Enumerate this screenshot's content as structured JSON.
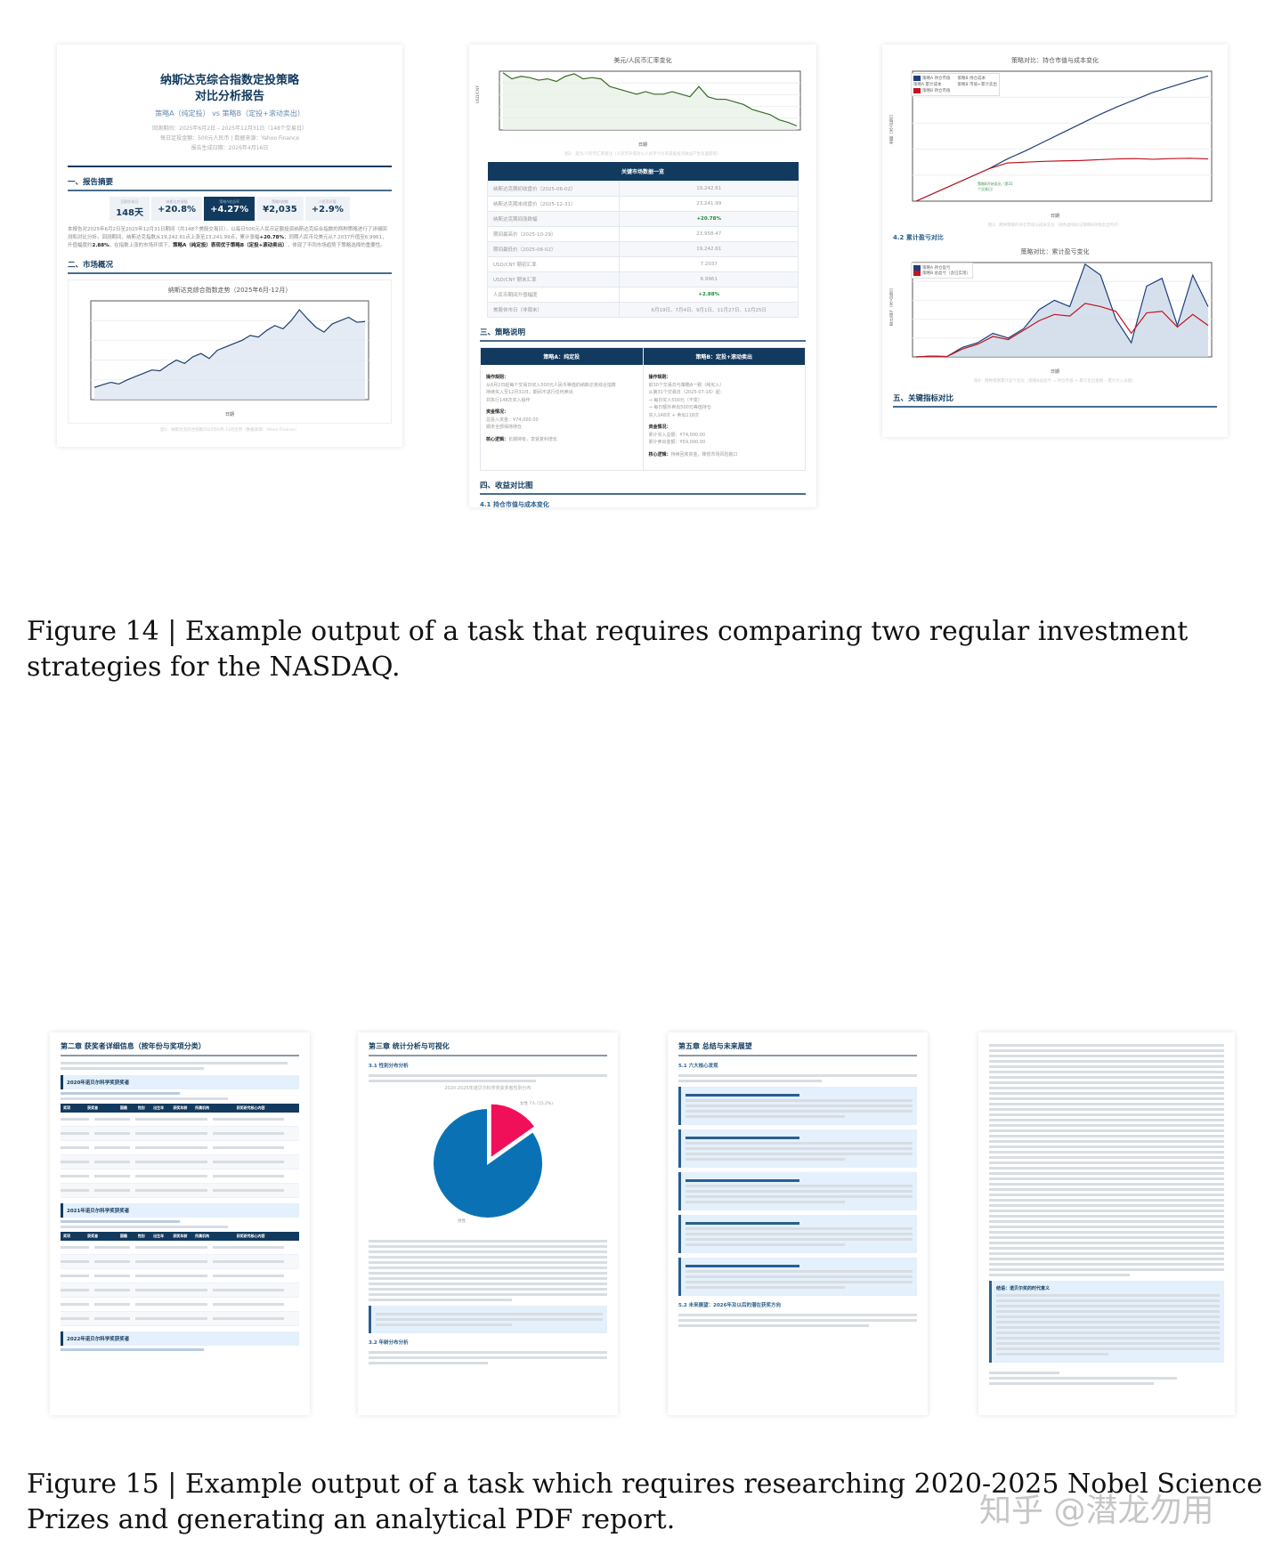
{
  "fig14": {
    "report_title_1": "纳斯达克综合指数定投策略",
    "report_title_2": "对比分析报告",
    "report_subtitle": "策略A（纯定投） vs 策略B（定投+滚动卖出）",
    "meta": [
      "回测期间：2025年6月2日 – 2025年12月31日（148个交易日）",
      "每日定投金额：500元人民币 | 数据来源：Yahoo Finance",
      "报告生成日期：2026年4月16日"
    ],
    "sec1": "一、报告摘要",
    "kpis": [
      {
        "label": "回测交易日",
        "value": "148天"
      },
      {
        "label": "纳斯达克涨幅",
        "value": "+20.8%"
      },
      {
        "label": "策略A收益率",
        "value": "+4.27%"
      },
      {
        "label": "策略A超额",
        "value": "¥2,035"
      },
      {
        "label": "人民币升值",
        "value": "+2.9%"
      }
    ],
    "summary_a": "本报告对2025年6月2日至2025年12月31日期间（共148个美股交易日），以每日500元人民币定额投资纳斯达克综合指数的两种策略进行了详细回测和对比分析。回测期间，纳斯达克指数从19,242.61点上涨至23,241.99点，累计涨幅",
    "summary_b": "+20.78%",
    "summary_c": "；同期人民币兑美元从7.2037升值至6.9961，升值幅度约",
    "summary_d": "2.88%",
    "summary_e": "。在指数上涨的市场环境下，",
    "summary_f": "策略A（纯定投）表现优于策略B（定投+滚动卖出）",
    "summary_g": "，体现了不同市场趋势下策略选择的重要性。",
    "sec2": "二、市场概况",
    "nasdaq_chart_title": "纳斯达克综合指数走势（2025年6月-12月）",
    "nasdaq_caption": "图1：纳斯达克综合指数2025年6月-12月走势（数据来源：Yahoo Finance）",
    "fx_chart_title": "美元/人民币汇率变化",
    "fx_caption": "图2：美元/人民币汇率变化（人民币升值对以人民币计价的美股投资收益产生负面影响）",
    "xlabel": "日期",
    "table_title": "关键市场数据一览",
    "table_rows": [
      [
        "纳斯达克期初收盘价（2025-06-02）",
        "19,242.61"
      ],
      [
        "纳斯达克期末收盘价（2025-12-31）",
        "23,241.99"
      ],
      [
        "纳斯达克期间涨跌幅",
        "+20.78%"
      ],
      [
        "期间最高价（2025-10-29）",
        "23,958.47"
      ],
      [
        "期间最低价（2025-06-02）",
        "19,242.61"
      ],
      [
        "USD/CNY 期初汇率",
        "7.2037"
      ],
      [
        "USD/CNY 期末汇率",
        "6.9961"
      ],
      [
        "人民币期间升值幅度",
        "+2.88%"
      ],
      [
        "美股休市日（非周末）",
        "6月19日、7月4日、9月1日、11月27日、12月25日"
      ]
    ],
    "sec3": "三、策略说明",
    "strategyA": {
      "title": "策略A：纯定投",
      "rules_h": "操作规则：",
      "rules": [
        "从6月2日起每个交易日买入500元人民币等值的纳斯达克综合指数",
        "持续买入至12月31日，期间不进行任何卖出",
        "共执行148次买入操作"
      ],
      "funds_h": "资金情况：",
      "funds": [
        "总投入资金：¥74,000.00",
        "期末全部保持持仓"
      ],
      "logic_h": "核心逻辑：",
      "logic": "长期持有，享受复利增长"
    },
    "strategyB": {
      "title": "策略B：定投+滚动卖出",
      "rules_h": "操作规则：",
      "rules": [
        "前30个交易日与策略A一致（纯买入）",
        "从第31个交易日（2025-07-16）起：",
        "→ 每日买入500元（不变）",
        "→ 每日额外卖出500元等值持仓",
        "买入148次 + 卖出118次"
      ],
      "funds_h": "资金情况：",
      "funds": [
        "累计买入总额：¥74,000.00",
        "累计卖出金额：¥59,000.00"
      ],
      "logic_h": "核心逻辑：",
      "logic": "持续回收资金，降低市场风险敞口"
    },
    "sec4": "四、收益对比图",
    "sub41": "4.1 持仓市值与成本变化",
    "mv_chart_title": "策略对比：持仓市值与成本变化",
    "mv_legend": [
      "策略A 持仓市值",
      "策略A 累计成本",
      "策略B 持仓市值",
      "策略B 持仓成本",
      "策略B 市值+累计卖出"
    ],
    "mv_annotation": "策略B开始卖出（第31个交易日）",
    "mv_caption": "图3：两种策略的持仓市值与成本变化（绿色虚线标记策略B开始卖出时点）",
    "sub42": "4.2 累计盈亏对比",
    "pnl_chart_title": "策略对比：累计盈亏变化",
    "pnl_legend": [
      "策略A 持仓盈亏",
      "策略B 总盈亏（含已实现）"
    ],
    "pnl_caption": "图4：两种策略累计盈亏变化（策略B总盈亏 = 持仓市值 + 累计卖出金额 – 累计买入总额）",
    "sec5": "五、关键指标对比"
  },
  "fig14_caption": "Figure 14 | Example output of a task that requires comparing two regular investment strategies for the NASDAQ.",
  "fig15": {
    "p1": {
      "chapter": "第二章 获奖者详细信息（按年份与奖项分类）",
      "y2020": "2020年诺贝尔科学奖获奖者",
      "y2021": "2021年诺贝尔科学奖获奖者",
      "y2022": "2022年诺贝尔科学奖获奖者",
      "cols": [
        "奖项",
        "获奖者",
        "国籍",
        "性别",
        "出生年",
        "获奖年龄",
        "所属机构",
        "获奖研究核心内容"
      ]
    },
    "p2": {
      "chapter": "第三章 统计分析与可视化",
      "s31": "3.1 性别分布分析",
      "pie_title": "2020-2025年诺贝尔科学奖获奖者性别分布",
      "pie_female": "女性 7人 (15.2%)",
      "pie_male": "男性",
      "s32": "3.2 年龄分布分析"
    },
    "p3": {
      "chapter": "第五章 总结与未来展望",
      "s51": "5.1 六大核心发现",
      "s52": "5.2 未来展望：2026年及以后的潜在获奖方向"
    },
    "p4": {
      "item": "结语：诺贝尔奖的时代意义"
    }
  },
  "fig15_caption": "Figure 15 | Example output of a task which requires researching 2020-2025 Nobel Science Prizes and generating an analytical PDF report.",
  "watermark": "知乎 @潜龙勿用",
  "chart_data": [
    {
      "type": "line",
      "title": "纳斯达克综合指数走势（2025年6月-12月）",
      "xlabel": "日期",
      "ylim": [
        18500,
        24500
      ],
      "series": [
        {
          "name": "纳斯达克综合指数",
          "values": [
            19243,
            19400,
            19550,
            19450,
            19700,
            19900,
            20100,
            20300,
            20250,
            20600,
            20900,
            20700,
            21100,
            21300,
            21000,
            21500,
            21700,
            21900,
            22100,
            22400,
            22300,
            22700,
            23000,
            22800,
            23300,
            23958,
            23400,
            22900,
            22600,
            23100,
            23300,
            23500,
            23200,
            23242
          ]
        }
      ]
    },
    {
      "type": "line",
      "title": "美元/人民币汇率变化",
      "ylabel": "USD/CNY",
      "ylim": [
        6.98,
        7.21
      ],
      "series": [
        {
          "name": "USD/CNY",
          "values": [
            7.2037,
            7.18,
            7.19,
            7.185,
            7.175,
            7.18,
            7.17,
            7.19,
            7.2,
            7.18,
            7.185,
            7.18,
            7.15,
            7.14,
            7.13,
            7.12,
            7.13,
            7.12,
            7.12,
            7.13,
            7.12,
            7.11,
            7.15,
            7.11,
            7.1,
            7.1,
            7.09,
            7.08,
            7.06,
            7.05,
            7.04,
            7.02,
            7.01,
            6.9961
          ]
        }
      ]
    },
    {
      "type": "line",
      "title": "策略对比：持仓市值与成本变化",
      "xlabel": "日期",
      "ylabel": "金额（元人民币）",
      "ylim": [
        0,
        80000
      ],
      "series": [
        {
          "name": "策略A 持仓市值",
          "values": [
            0,
            5000,
            10000,
            15000,
            20000,
            26000,
            31000,
            36500,
            42000,
            47500,
            53000,
            58000,
            62500,
            67000,
            70500,
            74000,
            77000
          ]
        },
        {
          "name": "策略B 持仓市值",
          "values": [
            0,
            5000,
            10000,
            15000,
            20000,
            23500,
            24000,
            24500,
            24800,
            25000,
            25500,
            26000,
            26200,
            25800,
            26200,
            26400,
            26000
          ]
        }
      ]
    },
    {
      "type": "area",
      "title": "策略对比：累计盈亏变化",
      "xlabel": "日期",
      "ylabel": "累计盈亏（元人民币）",
      "ylim": [
        0,
        6000
      ],
      "series": [
        {
          "name": "策略A 持仓盈亏",
          "values": [
            0,
            50,
            20,
            600,
            900,
            1500,
            1200,
            1800,
            3000,
            3600,
            3200,
            5900,
            5200,
            2400,
            900,
            4500,
            5000,
            2000,
            5200,
            3200
          ]
        },
        {
          "name": "策略B 总盈亏（含已实现）",
          "values": [
            0,
            50,
            20,
            500,
            800,
            1300,
            1100,
            1700,
            2300,
            2700,
            2600,
            3400,
            3200,
            2900,
            1500,
            2800,
            2900,
            1900,
            2700,
            2000
          ]
        }
      ]
    },
    {
      "type": "pie",
      "title": "2020-2025年诺贝尔科学奖获奖者性别分布",
      "categories": [
        "女性",
        "男性"
      ],
      "values": [
        15.2,
        84.8
      ]
    }
  ]
}
